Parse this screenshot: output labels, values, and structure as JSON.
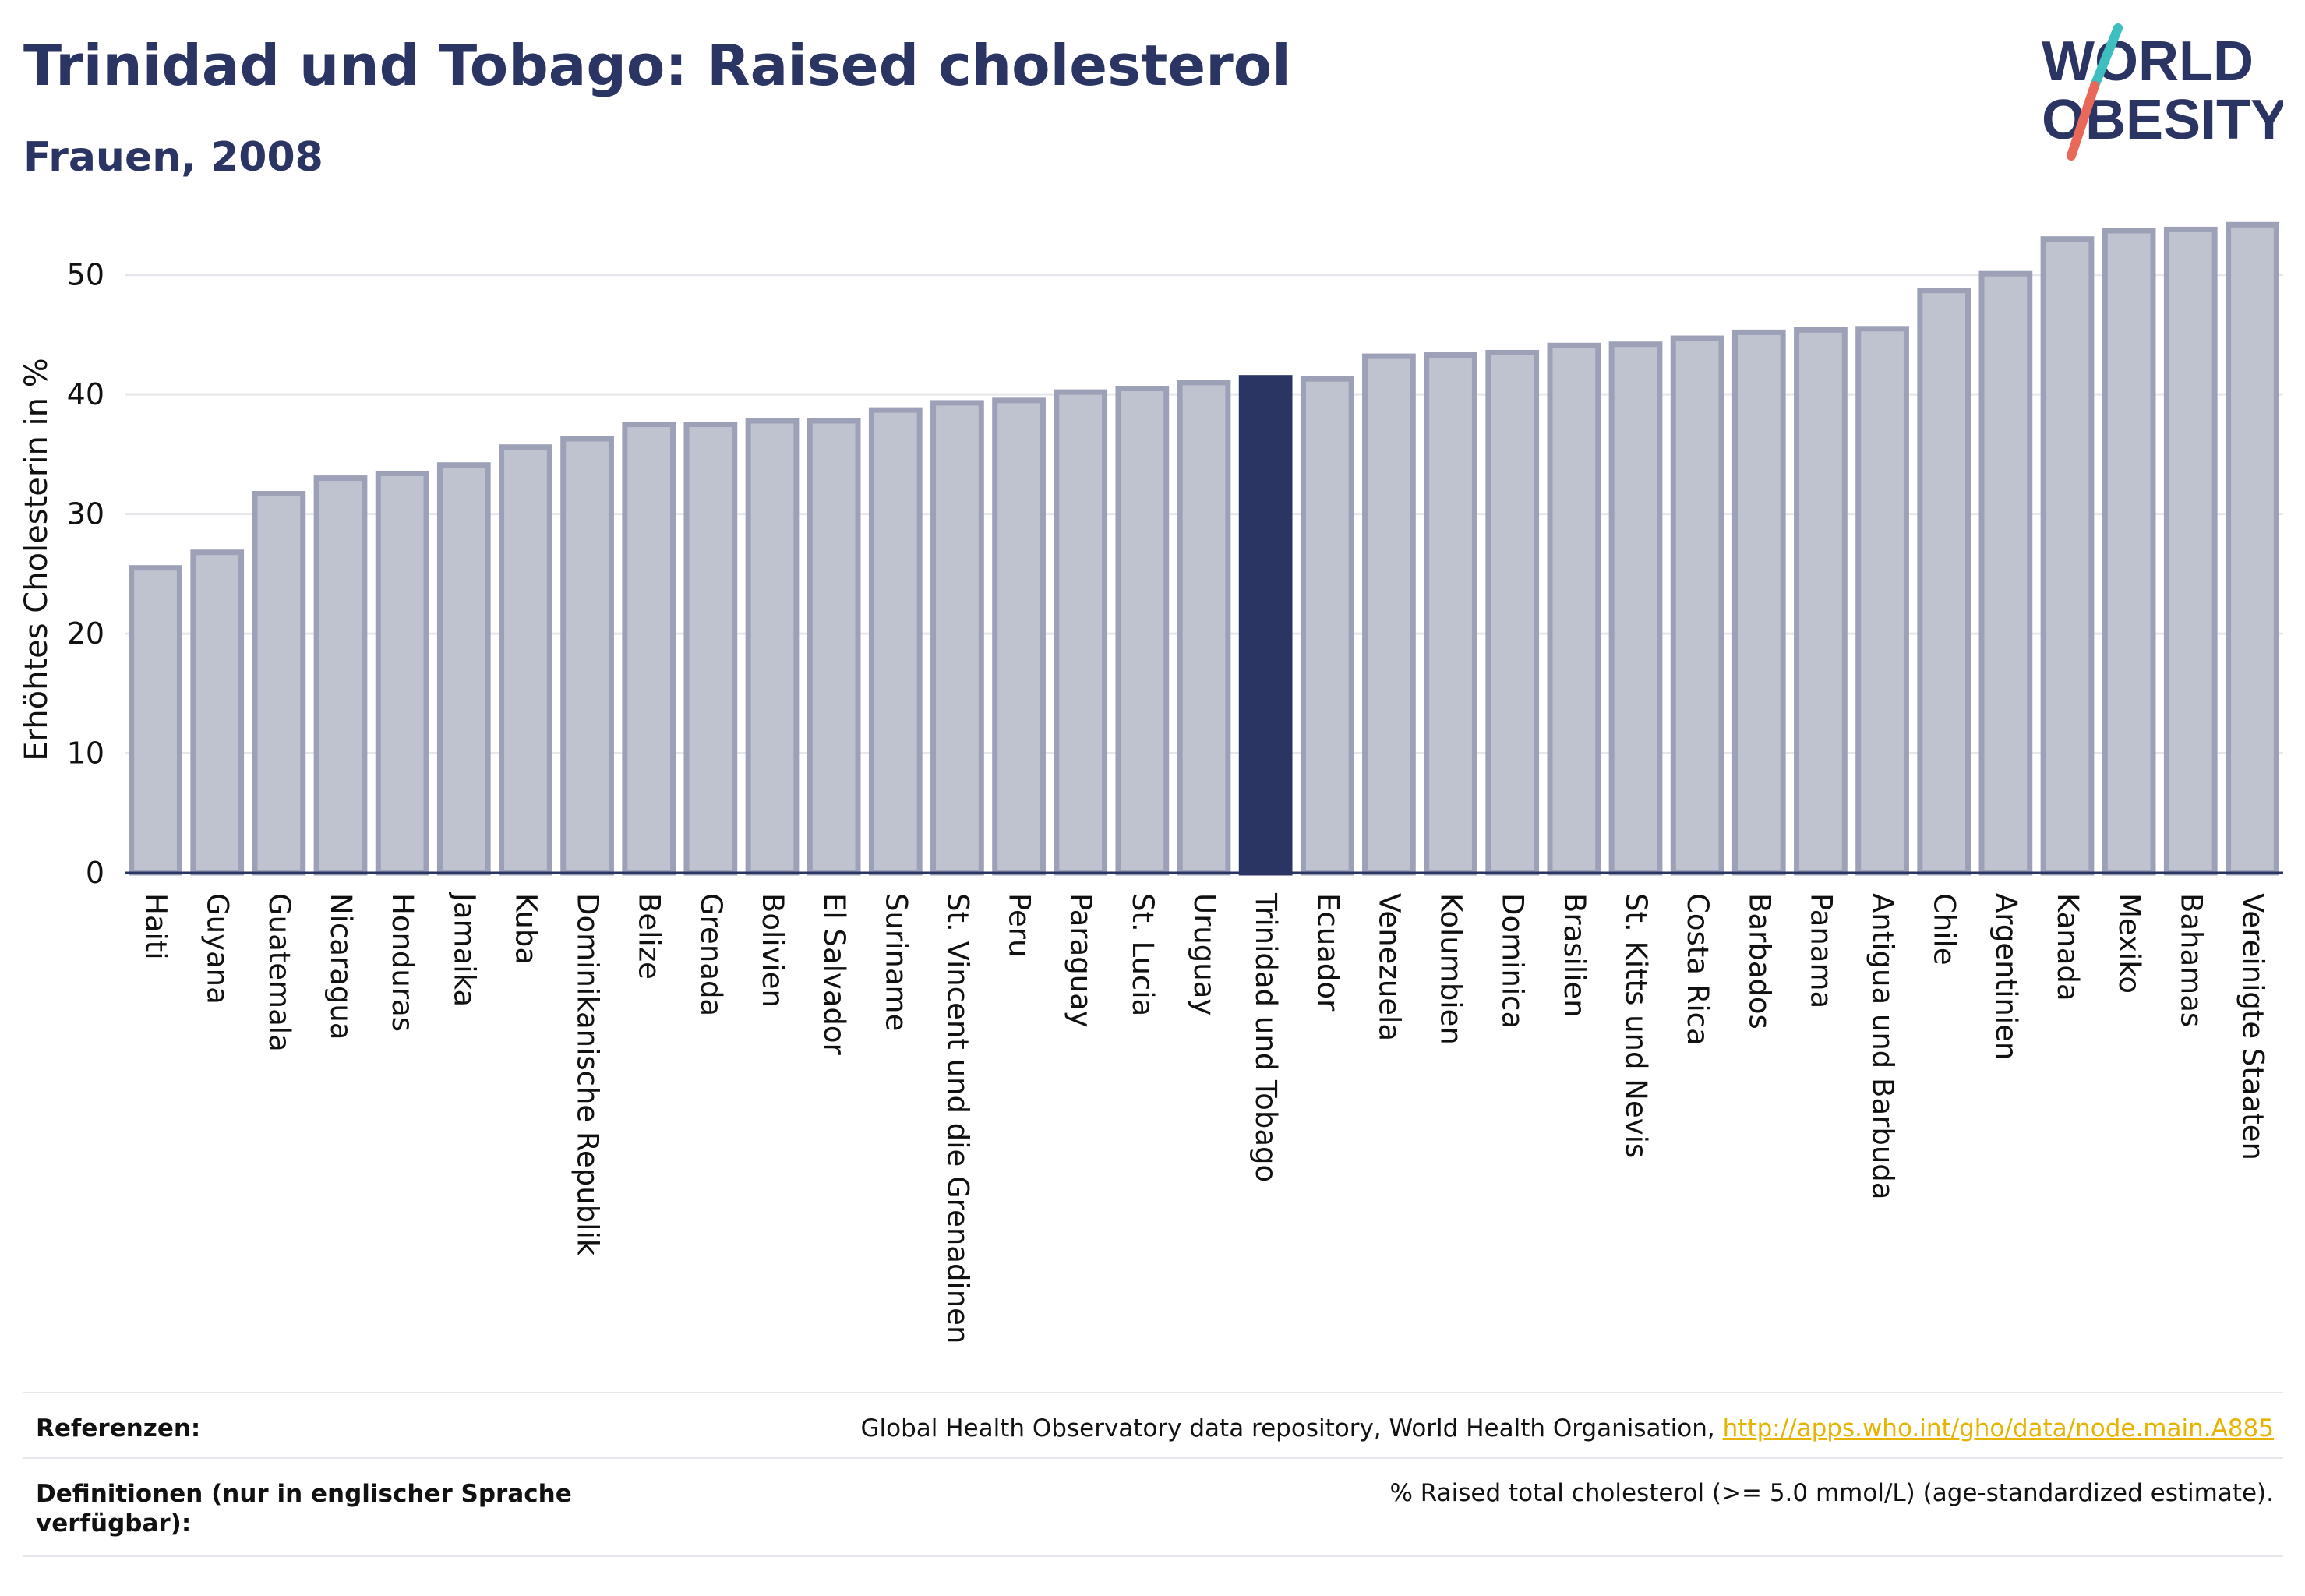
{
  "header": {
    "title": "Trinidad und Tobago: Raised cholesterol",
    "subtitle": "Frauen, 2008"
  },
  "logo": {
    "line1": "WORLD",
    "line2": "OBESITY",
    "colors": {
      "text": "#2b3563",
      "slash_teal": "#3dbfbf",
      "slash_coral": "#e8685a"
    }
  },
  "colors": {
    "highlight_bar": "#2b3563",
    "bar_fill": "#bfc2cf",
    "bar_stroke": "#9ca1b8",
    "gridline": "#e6e7ec",
    "axis_text": "#111111"
  },
  "chart_data": {
    "type": "bar",
    "ylabel": "Erhöhtes Cholesterin in %",
    "ylim": [
      0,
      55
    ],
    "yticks": [
      0,
      10,
      20,
      30,
      40,
      50
    ],
    "grid": true,
    "highlight": "Trinidad und Tobago",
    "categories": [
      "Haiti",
      "Guyana",
      "Guatemala",
      "Nicaragua",
      "Honduras",
      "Jamaika",
      "Kuba",
      "Dominikanische Republik",
      "Belize",
      "Grenada",
      "Bolivien",
      "El Salvador",
      "Suriname",
      "St. Vincent und die Grenadinen",
      "Peru",
      "Paraguay",
      "St. Lucia",
      "Uruguay",
      "Trinidad und Tobago",
      "Ecuador",
      "Venezuela",
      "Kolumbien",
      "Dominica",
      "Brasilien",
      "St. Kitts und Nevis",
      "Costa Rica",
      "Barbados",
      "Panama",
      "Antigua und Barbuda",
      "Chile",
      "Argentinien",
      "Kanada",
      "Mexiko",
      "Bahamas",
      "Vereinigte Staaten"
    ],
    "values": [
      25.5,
      26.8,
      31.7,
      33.0,
      33.4,
      34.1,
      35.6,
      36.3,
      37.5,
      37.5,
      37.8,
      37.8,
      38.7,
      39.3,
      39.5,
      40.2,
      40.5,
      41.0,
      41.4,
      41.3,
      43.2,
      43.3,
      43.5,
      44.1,
      44.2,
      44.7,
      45.2,
      45.4,
      45.5,
      48.7,
      50.1,
      53.0,
      53.7,
      53.8,
      54.2
    ]
  },
  "footer": {
    "references_label": "Referenzen:",
    "references_text": "Global Health Observatory data repository, World Health Organisation, ",
    "references_link": "http://apps.who.int/gho/data/node.main.A885",
    "definitions_label_line1": "Definitionen (nur in englischer Sprache",
    "definitions_label_line2": "verfügbar):",
    "definitions_text": "% Raised total cholesterol (>= 5.0 mmol/L) (age-standardized estimate)."
  }
}
